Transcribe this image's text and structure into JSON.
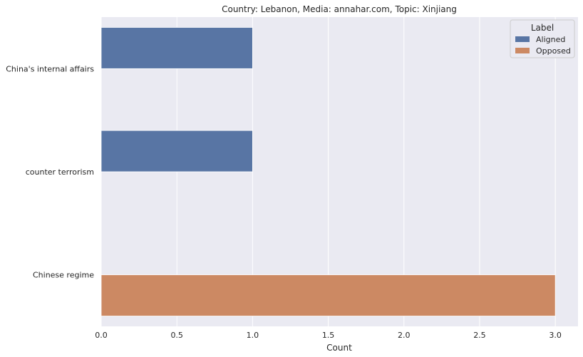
{
  "chart_data": {
    "type": "bar",
    "orientation": "horizontal",
    "title": "Country: Lebanon, Media: annahar.com, Topic: Xinjiang",
    "xlabel": "Count",
    "ylabel": "",
    "xlim": [
      0,
      3.15
    ],
    "x_ticks": [
      "0.0",
      "0.5",
      "1.0",
      "1.5",
      "2.0",
      "2.5",
      "3.0"
    ],
    "categories": [
      "China's internal affairs",
      "counter terrorism",
      "Chinese regime"
    ],
    "series": [
      {
        "name": "Aligned",
        "color": "#5875a4",
        "values": [
          1,
          1,
          0
        ]
      },
      {
        "name": "Opposed",
        "color": "#cc8963",
        "values": [
          0,
          0,
          3
        ]
      }
    ],
    "legend": {
      "title": "Label",
      "placement": "top-right"
    },
    "grid": true,
    "background_color": "#eaeaf2",
    "grid_color": "#ffffff"
  }
}
